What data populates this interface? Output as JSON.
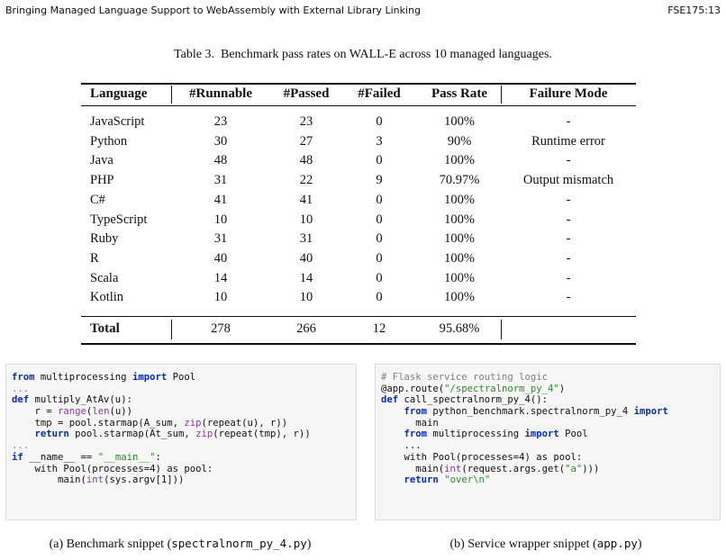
{
  "header": {
    "title": "Bringing Managed Language Support to WebAssembly with External Library Linking",
    "page": "FSE175:13"
  },
  "table": {
    "caption": "Table 3.  Benchmark pass rates on WALL-E across 10 managed languages.",
    "columns": [
      "Language",
      "#Runnable",
      "#Passed",
      "#Failed",
      "Pass Rate",
      "Failure Mode"
    ],
    "rows": [
      [
        "JavaScript",
        "23",
        "23",
        "0",
        "100%",
        "-"
      ],
      [
        "Python",
        "30",
        "27",
        "3",
        "90%",
        "Runtime error"
      ],
      [
        "Java",
        "48",
        "48",
        "0",
        "100%",
        "-"
      ],
      [
        "PHP",
        "31",
        "22",
        "9",
        "70.97%",
        "Output mismatch"
      ],
      [
        "C#",
        "41",
        "41",
        "0",
        "100%",
        "-"
      ],
      [
        "TypeScript",
        "10",
        "10",
        "0",
        "100%",
        "-"
      ],
      [
        "Ruby",
        "31",
        "31",
        "0",
        "100%",
        "-"
      ],
      [
        "R",
        "40",
        "40",
        "0",
        "100%",
        "-"
      ],
      [
        "Scala",
        "14",
        "14",
        "0",
        "100%",
        "-"
      ],
      [
        "Kotlin",
        "10",
        "10",
        "0",
        "100%",
        "-"
      ]
    ],
    "total": [
      "Total",
      "278",
      "266",
      "12",
      "95.68%"
    ]
  },
  "snippets": [
    {
      "lines": [
        [
          {
            "t": "from",
            "k": "keyword"
          },
          " multiprocessing ",
          {
            "t": "import",
            "k": "keyword"
          },
          " Pool"
        ],
        [
          {
            "t": "...",
            "k": "comment"
          }
        ],
        [
          {
            "t": "def",
            "k": "keyword"
          },
          " multiply_AtAv(u):"
        ],
        [
          "    r = ",
          {
            "t": "range",
            "k": "builtin"
          },
          "(",
          {
            "t": "len",
            "k": "builtin"
          },
          "(u))"
        ],
        [
          "    tmp = pool.starmap(A_sum, ",
          {
            "t": "zip",
            "k": "builtin"
          },
          "(repeat(u), r))"
        ],
        [
          "    ",
          {
            "t": "return",
            "k": "keyword"
          },
          " pool.starmap(At_sum, ",
          {
            "t": "zip",
            "k": "builtin"
          },
          "(repeat(tmp), r))"
        ],
        [
          {
            "t": "...",
            "k": "comment"
          }
        ],
        [
          {
            "t": "if",
            "k": "keyword"
          },
          " __name__ == ",
          {
            "t": "\"__main__\"",
            "k": "string"
          },
          ":"
        ],
        [
          "    with Pool(processes=4) as pool:"
        ],
        [
          "        main(",
          {
            "t": "int",
            "k": "builtin"
          },
          "(sys.argv[1]))"
        ]
      ],
      "caption": {
        "label": "(a) Benchmark snippet (",
        "file": "spectralnorm_py_4.py",
        "close": ")"
      }
    },
    {
      "lines": [
        [
          {
            "t": "# Flask service routing logic",
            "k": "comment"
          }
        ],
        [
          "@app.route(",
          {
            "t": "\"/spectralnorm_py_4\"",
            "k": "string"
          },
          ")"
        ],
        [
          {
            "t": "def",
            "k": "keyword"
          },
          " call_spectralnorm_py_4():"
        ],
        [
          "    ",
          {
            "t": "from",
            "k": "keyword"
          },
          " python_benchmark.spectralnorm_py_4 ",
          {
            "t": "import",
            "k": "keyword"
          }
        ],
        [
          "      main"
        ],
        [
          "    ",
          {
            "t": "from",
            "k": "keyword"
          },
          " multiprocessing ",
          {
            "t": "import",
            "k": "keyword"
          },
          " Pool"
        ],
        [
          "    ..."
        ],
        [
          "    with Pool(processes=4) as pool:"
        ],
        [
          "      main(",
          {
            "t": "int",
            "k": "builtin"
          },
          "(request.args.get(",
          {
            "t": "\"a\"",
            "k": "string"
          },
          ")))"
        ],
        [
          "    ",
          {
            "t": "return",
            "k": "keyword"
          },
          " ",
          {
            "t": "\"over\\n\"",
            "k": "string"
          }
        ]
      ],
      "caption": {
        "label": "(b) Service wrapper snippet (",
        "file": "app.py",
        "close": ")"
      }
    }
  ]
}
